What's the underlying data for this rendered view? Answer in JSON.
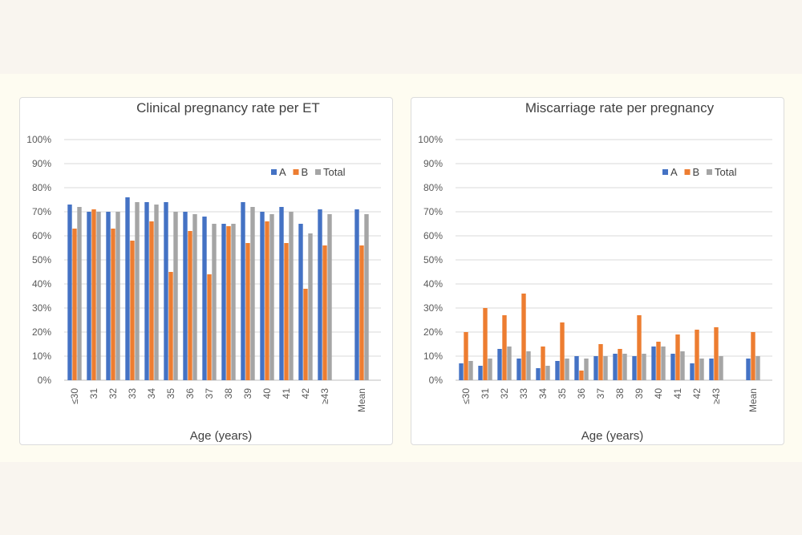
{
  "colors": {
    "A": "#4472c4",
    "B": "#ed7d31",
    "Total": "#a5a5a5"
  },
  "chart_data": [
    {
      "type": "bar",
      "title": "Clinical pregnancy rate per ET",
      "xlabel": "Age (years)",
      "ylabel": "",
      "ylim": [
        0,
        100
      ],
      "yticks": [
        "0%",
        "10%",
        "20%",
        "30%",
        "40%",
        "50%",
        "60%",
        "70%",
        "80%",
        "90%",
        "100%"
      ],
      "categories": [
        "≤30",
        "31",
        "32",
        "33",
        "34",
        "35",
        "36",
        "37",
        "38",
        "39",
        "40",
        "41",
        "42",
        "≥43",
        "Mean"
      ],
      "legend_position": "top-right",
      "series": [
        {
          "name": "A",
          "values": [
            73,
            70,
            70,
            76,
            74,
            74,
            70,
            68,
            65,
            74,
            70,
            72,
            65,
            71,
            71
          ]
        },
        {
          "name": "B",
          "values": [
            63,
            71,
            63,
            58,
            66,
            45,
            62,
            44,
            64,
            57,
            66,
            57,
            38,
            56,
            56
          ]
        },
        {
          "name": "Total",
          "values": [
            72,
            70,
            70,
            74,
            73,
            70,
            69,
            65,
            65,
            72,
            69,
            70,
            61,
            69,
            69
          ]
        }
      ]
    },
    {
      "type": "bar",
      "title": "Miscarriage rate per pregnancy",
      "xlabel": "Age (years)",
      "ylabel": "",
      "ylim": [
        0,
        100
      ],
      "yticks": [
        "0%",
        "10%",
        "20%",
        "30%",
        "40%",
        "50%",
        "60%",
        "70%",
        "80%",
        "90%",
        "100%"
      ],
      "categories": [
        "≤30",
        "31",
        "32",
        "33",
        "34",
        "35",
        "36",
        "37",
        "38",
        "39",
        "40",
        "41",
        "42",
        "≥43",
        "Mean"
      ],
      "legend_position": "top-right",
      "series": [
        {
          "name": "A",
          "values": [
            7,
            6,
            13,
            9,
            5,
            8,
            10,
            10,
            11,
            10,
            14,
            11,
            7,
            9,
            9
          ]
        },
        {
          "name": "B",
          "values": [
            20,
            30,
            27,
            36,
            14,
            24,
            4,
            15,
            13,
            27,
            16,
            19,
            21,
            22,
            20
          ]
        },
        {
          "name": "Total",
          "values": [
            8,
            9,
            14,
            12,
            6,
            9,
            9,
            10,
            11,
            11,
            14,
            12,
            9,
            10,
            10
          ]
        }
      ]
    }
  ]
}
